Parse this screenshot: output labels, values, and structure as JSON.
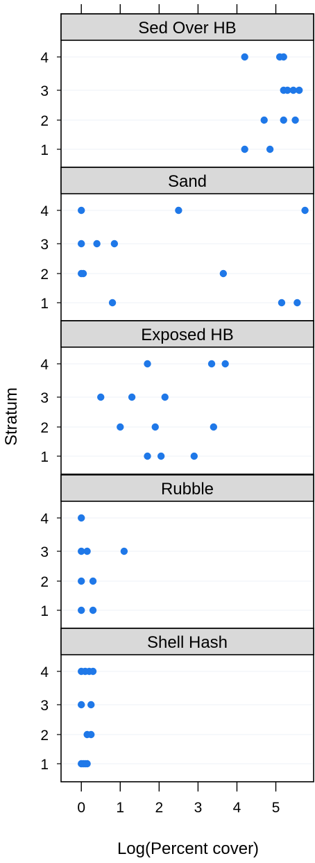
{
  "chart_data": {
    "type": "scatter",
    "xlabel": "Log(Percent cover)",
    "ylabel": "Stratum",
    "xlim": [
      -0.2,
      5.9
    ],
    "x_ticks": [
      0,
      1,
      2,
      3,
      4,
      5
    ],
    "strata": [
      "1",
      "2",
      "3",
      "4"
    ],
    "grid": false,
    "point_color": "#1f78e8",
    "strip_color": "#d9d9d9",
    "panels": [
      {
        "name": "Sed Over HB",
        "points": {
          "4": [
            4.2,
            5.1,
            5.2
          ],
          "3": [
            5.2,
            5.3,
            5.45,
            5.6
          ],
          "2": [
            4.7,
            5.2,
            5.5
          ],
          "1": [
            4.2,
            4.85
          ]
        }
      },
      {
        "name": "Sand",
        "points": {
          "4": [
            0.0,
            2.5,
            5.75
          ],
          "3": [
            0.0,
            0.4,
            0.85
          ],
          "2": [
            0.0,
            0.05,
            3.65
          ],
          "1": [
            0.8,
            5.15,
            5.55
          ]
        }
      },
      {
        "name": "Exposed HB",
        "points": {
          "4": [
            1.7,
            3.35,
            3.7
          ],
          "3": [
            0.5,
            1.3,
            2.15
          ],
          "2": [
            1.0,
            1.9,
            3.4
          ],
          "1": [
            1.7,
            2.05,
            2.9
          ]
        }
      },
      {
        "name": "Rubble",
        "points": {
          "4": [
            0.0
          ],
          "3": [
            0.0,
            0.15,
            1.1
          ],
          "2": [
            0.0,
            0.3
          ],
          "1": [
            0.0,
            0.3
          ]
        }
      },
      {
        "name": "Shell Hash",
        "points": {
          "4": [
            0.0,
            0.1,
            0.2,
            0.3
          ],
          "3": [
            0.0,
            0.25
          ],
          "2": [
            0.15,
            0.25
          ],
          "1": [
            0.0,
            0.05,
            0.1,
            0.15
          ]
        }
      }
    ]
  }
}
